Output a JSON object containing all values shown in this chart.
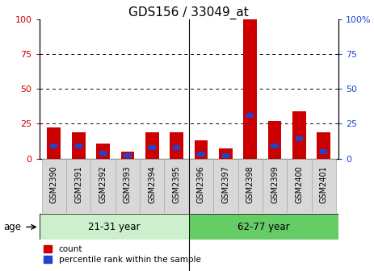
{
  "title": "GDS156 / 33049_at",
  "samples": [
    "GSM2390",
    "GSM2391",
    "GSM2392",
    "GSM2393",
    "GSM2394",
    "GSM2395",
    "GSM2396",
    "GSM2397",
    "GSM2398",
    "GSM2399",
    "GSM2400",
    "GSM2401"
  ],
  "count_values": [
    22,
    19,
    11,
    5,
    19,
    19,
    13,
    7,
    100,
    27,
    34,
    19
  ],
  "percentile_values": [
    9,
    9,
    4,
    2,
    8,
    8,
    3,
    2,
    31,
    9,
    14,
    5
  ],
  "group1_label": "21-31 year",
  "group2_label": "62-77 year",
  "group1_count": 6,
  "bar_color_red": "#cc0000",
  "bar_color_blue": "#2244cc",
  "group1_bg": "#ccf0cc",
  "group2_bg": "#66cc66",
  "ylim": [
    0,
    100
  ],
  "yticks": [
    0,
    25,
    50,
    75,
    100
  ],
  "left_tick_color": "#cc0000",
  "right_tick_color": "#2244cc",
  "age_label": "age",
  "legend_count": "count",
  "legend_percentile": "percentile rank within the sample",
  "bar_width": 0.55,
  "title_fontsize": 11,
  "sample_fontsize": 7,
  "gray_box_color": "#d8d8d8",
  "gray_box_edge": "#aaaaaa"
}
